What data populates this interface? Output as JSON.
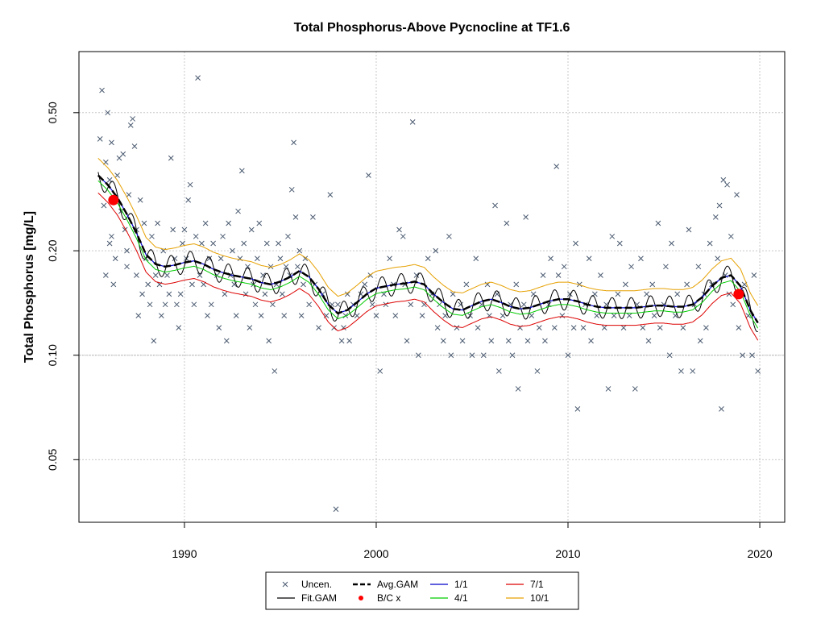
{
  "chart_data": {
    "type": "scatter",
    "title": "Total Phosphorus-Above Pycnocline at TF1.6",
    "xlabel": "",
    "ylabel": "Total Phosphorus [mg/L]",
    "y_scale": "log",
    "xlim": [
      1984.5,
      2021.3
    ],
    "ylim": [
      0.033,
      0.75
    ],
    "x_ticks": [
      1990,
      2000,
      2010,
      2020
    ],
    "x_tick_labels": [
      "1990",
      "2000",
      "2010",
      "2020"
    ],
    "y_ticks": [
      0.05,
      0.1,
      0.2,
      0.5
    ],
    "y_tick_labels": [
      "0.05",
      "0.10",
      "0.20",
      "0.50"
    ],
    "grid": true,
    "reference_line_y": 0.1,
    "legend_placement": "bottom-center",
    "colors": {
      "points": "#4a5a70",
      "fit_gam": "#000000",
      "avg_gam": "#000000",
      "bc": "#ff0000",
      "d1_1": "#0000cc",
      "d4_1": "#00cc00",
      "d7_1": "#dd0000",
      "d10_1": "#e6a000",
      "grid": "#c8c8c8"
    },
    "legend": [
      {
        "label": "Uncen.",
        "kind": "point-x",
        "color_key": "points"
      },
      {
        "label": "Avg.GAM",
        "kind": "dashed-line",
        "color_key": "avg_gam"
      },
      {
        "label": "1/1",
        "kind": "line",
        "color_key": "d1_1"
      },
      {
        "label": "7/1",
        "kind": "line",
        "color_key": "d7_1"
      },
      {
        "label": "Fit.GAM",
        "kind": "line",
        "color_key": "fit_gam"
      },
      {
        "label": "B/C x",
        "kind": "dot",
        "color_key": "bc"
      },
      {
        "label": "4/1",
        "kind": "line",
        "color_key": "d4_1"
      },
      {
        "label": "10/1",
        "kind": "line",
        "color_key": "d10_1"
      }
    ],
    "avg_gam": {
      "x": [
        1985.5,
        1986.0,
        1986.5,
        1987.0,
        1987.5,
        1988.0,
        1988.5,
        1989.0,
        1989.5,
        1990.0,
        1990.5,
        1991.0,
        1991.5,
        1992.0,
        1992.5,
        1993.0,
        1993.5,
        1994.0,
        1994.5,
        1995.0,
        1995.5,
        1996.0,
        1996.5,
        1997.0,
        1997.5,
        1998.0,
        1998.5,
        1999.0,
        1999.5,
        2000.0,
        2000.5,
        2001.0,
        2001.5,
        2002.0,
        2002.5,
        2003.0,
        2003.5,
        2004.0,
        2004.5,
        2005.0,
        2005.5,
        2006.0,
        2006.5,
        2007.0,
        2007.5,
        2008.0,
        2008.5,
        2009.0,
        2009.5,
        2010.0,
        2010.5,
        2011.0,
        2011.5,
        2012.0,
        2012.5,
        2013.0,
        2013.5,
        2014.0,
        2014.5,
        2015.0,
        2015.5,
        2016.0,
        2016.5,
        2017.0,
        2017.5,
        2018.0,
        2018.5,
        2019.0,
        2019.5,
        2019.9
      ],
      "y": [
        0.33,
        0.31,
        0.285,
        0.255,
        0.225,
        0.195,
        0.183,
        0.18,
        0.182,
        0.185,
        0.187,
        0.183,
        0.177,
        0.173,
        0.17,
        0.168,
        0.166,
        0.162,
        0.16,
        0.163,
        0.168,
        0.175,
        0.168,
        0.155,
        0.14,
        0.132,
        0.135,
        0.142,
        0.15,
        0.156,
        0.158,
        0.16,
        0.161,
        0.163,
        0.16,
        0.15,
        0.142,
        0.136,
        0.135,
        0.139,
        0.143,
        0.145,
        0.142,
        0.138,
        0.136,
        0.137,
        0.14,
        0.143,
        0.145,
        0.145,
        0.143,
        0.14,
        0.138,
        0.137,
        0.137,
        0.137,
        0.137,
        0.138,
        0.139,
        0.139,
        0.138,
        0.138,
        0.14,
        0.147,
        0.158,
        0.167,
        0.17,
        0.158,
        0.135,
        0.124
      ]
    },
    "seasonal_amplitude": 0.07,
    "diag_offsets": {
      "d1_1": 1.0,
      "d4_1": 0.965,
      "d7_1": 0.89,
      "d10_1": 1.12
    },
    "bc_points": [
      {
        "x": 1986.3,
        "y": 0.28
      },
      {
        "x": 2018.9,
        "y": 0.15
      }
    ],
    "points": [
      [
        1985.6,
        0.42
      ],
      [
        1985.7,
        0.58
      ],
      [
        1985.8,
        0.27
      ],
      [
        1985.9,
        0.36
      ],
      [
        1985.9,
        0.17
      ],
      [
        1986.0,
        0.5
      ],
      [
        1986.1,
        0.21
      ],
      [
        1986.1,
        0.32
      ],
      [
        1986.2,
        0.41
      ],
      [
        1986.2,
        0.22
      ],
      [
        1986.3,
        0.16
      ],
      [
        1986.4,
        0.19
      ],
      [
        1986.5,
        0.33
      ],
      [
        1986.6,
        0.37
      ],
      [
        1986.7,
        0.26
      ],
      [
        1986.8,
        0.38
      ],
      [
        1986.9,
        0.23
      ],
      [
        1987.0,
        0.2
      ],
      [
        1987.0,
        0.18
      ],
      [
        1987.1,
        0.29
      ],
      [
        1987.2,
        0.46
      ],
      [
        1987.3,
        0.48
      ],
      [
        1987.4,
        0.4
      ],
      [
        1987.5,
        0.23
      ],
      [
        1987.5,
        0.17
      ],
      [
        1987.6,
        0.13
      ],
      [
        1987.7,
        0.28
      ],
      [
        1987.8,
        0.15
      ],
      [
        1987.9,
        0.24
      ],
      [
        1988.0,
        0.19
      ],
      [
        1988.1,
        0.16
      ],
      [
        1988.2,
        0.14
      ],
      [
        1988.3,
        0.22
      ],
      [
        1988.4,
        0.11
      ],
      [
        1988.5,
        0.17
      ],
      [
        1988.6,
        0.24
      ],
      [
        1988.7,
        0.16
      ],
      [
        1988.8,
        0.13
      ],
      [
        1988.9,
        0.2
      ],
      [
        1989.0,
        0.14
      ],
      [
        1989.1,
        0.17
      ],
      [
        1989.2,
        0.15
      ],
      [
        1989.3,
        0.37
      ],
      [
        1989.4,
        0.23
      ],
      [
        1989.5,
        0.19
      ],
      [
        1989.6,
        0.14
      ],
      [
        1989.7,
        0.12
      ],
      [
        1989.8,
        0.15
      ],
      [
        1989.9,
        0.21
      ],
      [
        1990.0,
        0.23
      ],
      [
        1990.1,
        0.19
      ],
      [
        1990.2,
        0.28
      ],
      [
        1990.3,
        0.31
      ],
      [
        1990.4,
        0.16
      ],
      [
        1990.5,
        0.14
      ],
      [
        1990.6,
        0.22
      ],
      [
        1990.7,
        0.63
      ],
      [
        1990.8,
        0.17
      ],
      [
        1990.9,
        0.21
      ],
      [
        1991.0,
        0.16
      ],
      [
        1991.1,
        0.24
      ],
      [
        1991.2,
        0.13
      ],
      [
        1991.3,
        0.19
      ],
      [
        1991.4,
        0.14
      ],
      [
        1991.5,
        0.21
      ],
      [
        1991.7,
        0.17
      ],
      [
        1991.8,
        0.12
      ],
      [
        1991.9,
        0.19
      ],
      [
        1992.0,
        0.22
      ],
      [
        1992.1,
        0.15
      ],
      [
        1992.2,
        0.11
      ],
      [
        1992.3,
        0.24
      ],
      [
        1992.4,
        0.17
      ],
      [
        1992.5,
        0.2
      ],
      [
        1992.6,
        0.16
      ],
      [
        1992.7,
        0.13
      ],
      [
        1992.8,
        0.26
      ],
      [
        1992.9,
        0.19
      ],
      [
        1993.0,
        0.34
      ],
      [
        1993.1,
        0.21
      ],
      [
        1993.2,
        0.15
      ],
      [
        1993.3,
        0.18
      ],
      [
        1993.4,
        0.12
      ],
      [
        1993.5,
        0.23
      ],
      [
        1993.6,
        0.16
      ],
      [
        1993.7,
        0.14
      ],
      [
        1993.8,
        0.19
      ],
      [
        1993.9,
        0.24
      ],
      [
        1994.0,
        0.13
      ],
      [
        1994.1,
        0.17
      ],
      [
        1994.2,
        0.15
      ],
      [
        1994.3,
        0.21
      ],
      [
        1994.4,
        0.11
      ],
      [
        1994.5,
        0.18
      ],
      [
        1994.6,
        0.14
      ],
      [
        1994.7,
        0.09
      ],
      [
        1994.8,
        0.16
      ],
      [
        1994.9,
        0.21
      ],
      [
        1995.0,
        0.19
      ],
      [
        1995.1,
        0.15
      ],
      [
        1995.2,
        0.13
      ],
      [
        1995.3,
        0.18
      ],
      [
        1995.4,
        0.22
      ],
      [
        1995.5,
        0.17
      ],
      [
        1995.6,
        0.3
      ],
      [
        1995.7,
        0.41
      ],
      [
        1995.8,
        0.25
      ],
      [
        1995.9,
        0.18
      ],
      [
        1996.0,
        0.2
      ],
      [
        1996.1,
        0.13
      ],
      [
        1996.2,
        0.16
      ],
      [
        1996.3,
        0.19
      ],
      [
        1996.5,
        0.14
      ],
      [
        1996.7,
        0.25
      ],
      [
        1996.8,
        0.16
      ],
      [
        1997.0,
        0.12
      ],
      [
        1997.2,
        0.15
      ],
      [
        1997.4,
        0.13
      ],
      [
        1997.6,
        0.29
      ],
      [
        1997.7,
        0.14
      ],
      [
        1997.8,
        0.12
      ],
      [
        1997.9,
        0.036
      ],
      [
        1998.0,
        0.14
      ],
      [
        1998.2,
        0.11
      ],
      [
        1998.3,
        0.12
      ],
      [
        1998.4,
        0.13
      ],
      [
        1998.5,
        0.15
      ],
      [
        1998.6,
        0.11
      ],
      [
        1998.8,
        0.14
      ],
      [
        1999.0,
        0.13
      ],
      [
        1999.2,
        0.15
      ],
      [
        1999.4,
        0.16
      ],
      [
        1999.6,
        0.33
      ],
      [
        1999.7,
        0.17
      ],
      [
        1999.8,
        0.14
      ],
      [
        2000.0,
        0.13
      ],
      [
        2000.2,
        0.09
      ],
      [
        2000.4,
        0.15
      ],
      [
        2000.5,
        0.14
      ],
      [
        2000.7,
        0.19
      ],
      [
        2000.9,
        0.16
      ],
      [
        2001.0,
        0.13
      ],
      [
        2001.2,
        0.23
      ],
      [
        2001.4,
        0.22
      ],
      [
        2001.5,
        0.16
      ],
      [
        2001.6,
        0.11
      ],
      [
        2001.8,
        0.14
      ],
      [
        2001.9,
        0.47
      ],
      [
        2002.1,
        0.17
      ],
      [
        2002.2,
        0.1
      ],
      [
        2002.4,
        0.13
      ],
      [
        2002.5,
        0.14
      ],
      [
        2002.7,
        0.19
      ],
      [
        2002.9,
        0.15
      ],
      [
        2003.1,
        0.2
      ],
      [
        2003.2,
        0.12
      ],
      [
        2003.3,
        0.14
      ],
      [
        2003.5,
        0.11
      ],
      [
        2003.6,
        0.13
      ],
      [
        2003.8,
        0.22
      ],
      [
        2003.9,
        0.1
      ],
      [
        2004.0,
        0.15
      ],
      [
        2004.2,
        0.12
      ],
      [
        2004.4,
        0.14
      ],
      [
        2004.5,
        0.11
      ],
      [
        2004.7,
        0.16
      ],
      [
        2004.9,
        0.13
      ],
      [
        2005.0,
        0.1
      ],
      [
        2005.2,
        0.19
      ],
      [
        2005.3,
        0.12
      ],
      [
        2005.5,
        0.14
      ],
      [
        2005.6,
        0.1
      ],
      [
        2005.8,
        0.16
      ],
      [
        2005.9,
        0.13
      ],
      [
        2006.0,
        0.11
      ],
      [
        2006.2,
        0.27
      ],
      [
        2006.3,
        0.15
      ],
      [
        2006.4,
        0.09
      ],
      [
        2006.6,
        0.13
      ],
      [
        2006.8,
        0.24
      ],
      [
        2006.9,
        0.11
      ],
      [
        2007.0,
        0.14
      ],
      [
        2007.1,
        0.1
      ],
      [
        2007.3,
        0.16
      ],
      [
        2007.4,
        0.08
      ],
      [
        2007.5,
        0.12
      ],
      [
        2007.7,
        0.14
      ],
      [
        2007.8,
        0.25
      ],
      [
        2007.9,
        0.11
      ],
      [
        2008.1,
        0.13
      ],
      [
        2008.2,
        0.15
      ],
      [
        2008.4,
        0.09
      ],
      [
        2008.5,
        0.12
      ],
      [
        2008.7,
        0.17
      ],
      [
        2008.8,
        0.11
      ],
      [
        2009.0,
        0.14
      ],
      [
        2009.1,
        0.19
      ],
      [
        2009.3,
        0.12
      ],
      [
        2009.4,
        0.35
      ],
      [
        2009.5,
        0.17
      ],
      [
        2009.7,
        0.13
      ],
      [
        2009.8,
        0.18
      ],
      [
        2010.0,
        0.1
      ],
      [
        2010.1,
        0.15
      ],
      [
        2010.3,
        0.12
      ],
      [
        2010.4,
        0.21
      ],
      [
        2010.5,
        0.07
      ],
      [
        2010.6,
        0.16
      ],
      [
        2010.8,
        0.12
      ],
      [
        2010.9,
        0.14
      ],
      [
        2011.1,
        0.19
      ],
      [
        2011.2,
        0.11
      ],
      [
        2011.4,
        0.15
      ],
      [
        2011.5,
        0.13
      ],
      [
        2011.7,
        0.17
      ],
      [
        2011.9,
        0.12
      ],
      [
        2012.0,
        0.14
      ],
      [
        2012.1,
        0.08
      ],
      [
        2012.3,
        0.22
      ],
      [
        2012.4,
        0.13
      ],
      [
        2012.6,
        0.15
      ],
      [
        2012.7,
        0.21
      ],
      [
        2012.9,
        0.12
      ],
      [
        2013.0,
        0.16
      ],
      [
        2013.2,
        0.13
      ],
      [
        2013.3,
        0.18
      ],
      [
        2013.5,
        0.08
      ],
      [
        2013.6,
        0.14
      ],
      [
        2013.8,
        0.19
      ],
      [
        2013.9,
        0.12
      ],
      [
        2014.1,
        0.15
      ],
      [
        2014.2,
        0.11
      ],
      [
        2014.4,
        0.16
      ],
      [
        2014.5,
        0.13
      ],
      [
        2014.7,
        0.24
      ],
      [
        2014.8,
        0.12
      ],
      [
        2015.0,
        0.14
      ],
      [
        2015.1,
        0.18
      ],
      [
        2015.3,
        0.1
      ],
      [
        2015.4,
        0.21
      ],
      [
        2015.6,
        0.13
      ],
      [
        2015.7,
        0.15
      ],
      [
        2015.9,
        0.09
      ],
      [
        2016.0,
        0.12
      ],
      [
        2016.2,
        0.16
      ],
      [
        2016.3,
        0.23
      ],
      [
        2016.5,
        0.09
      ],
      [
        2016.6,
        0.14
      ],
      [
        2016.8,
        0.18
      ],
      [
        2016.9,
        0.11
      ],
      [
        2017.1,
        0.15
      ],
      [
        2017.2,
        0.12
      ],
      [
        2017.4,
        0.21
      ],
      [
        2017.5,
        0.16
      ],
      [
        2017.7,
        0.25
      ],
      [
        2017.8,
        0.19
      ],
      [
        2017.9,
        0.27
      ],
      [
        2018.0,
        0.07
      ],
      [
        2018.1,
        0.32
      ],
      [
        2018.2,
        0.17
      ],
      [
        2018.3,
        0.31
      ],
      [
        2018.4,
        0.15
      ],
      [
        2018.5,
        0.22
      ],
      [
        2018.6,
        0.14
      ],
      [
        2018.8,
        0.29
      ],
      [
        2018.9,
        0.12
      ],
      [
        2019.1,
        0.1
      ],
      [
        2019.2,
        0.16
      ],
      [
        2019.4,
        0.13
      ],
      [
        2019.6,
        0.1
      ],
      [
        2019.7,
        0.17
      ],
      [
        2019.9,
        0.09
      ]
    ]
  }
}
